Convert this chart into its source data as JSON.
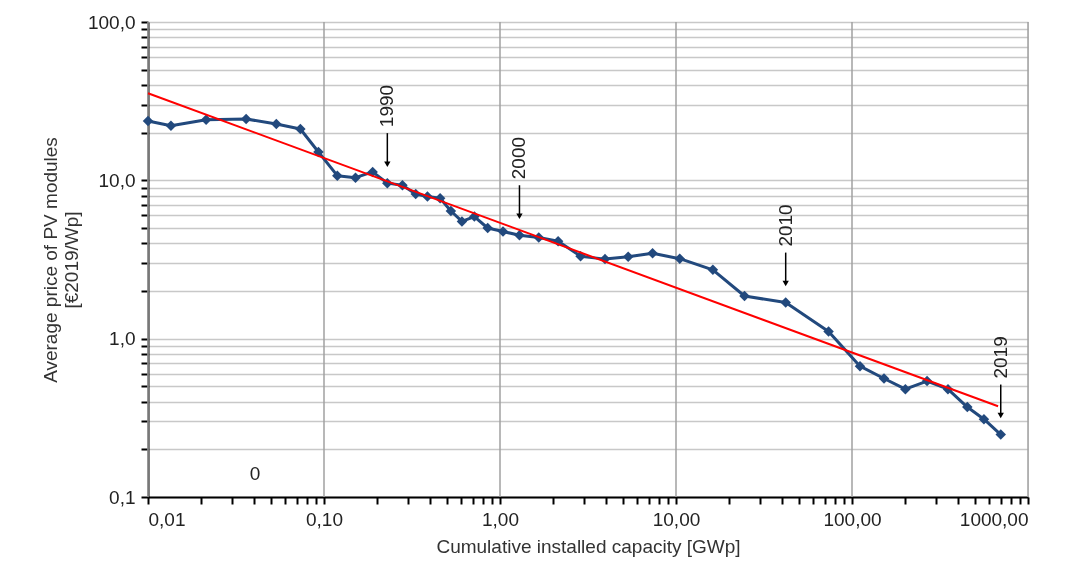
{
  "chart_data": {
    "type": "line",
    "xlabel": "Cumulative installed capacity [GWp]",
    "ylabel": "Average price of PV modules\n[€2019/Wp]",
    "log": "xy",
    "xlim": [
      0.01,
      1000
    ],
    "xticks": [
      {
        "value": 0.01,
        "label": "0,01"
      },
      {
        "value": 0.02,
        "label": null
      },
      {
        "value": 0.03,
        "label": null
      },
      {
        "value": 0.04,
        "label": null
      },
      {
        "value": 0.05,
        "label": null
      },
      {
        "value": 0.06,
        "label": null
      },
      {
        "value": 0.07,
        "label": null
      },
      {
        "value": 0.08,
        "label": null
      },
      {
        "value": 0.09,
        "label": null
      },
      {
        "value": 0.1,
        "label": "0,10"
      },
      {
        "value": 0.2,
        "label": null
      },
      {
        "value": 0.3,
        "label": null
      },
      {
        "value": 0.4,
        "label": null
      },
      {
        "value": 0.5,
        "label": null
      },
      {
        "value": 0.6,
        "label": null
      },
      {
        "value": 0.7,
        "label": null
      },
      {
        "value": 0.8,
        "label": null
      },
      {
        "value": 0.9,
        "label": null
      },
      {
        "value": 1,
        "label": "1,00"
      },
      {
        "value": 2,
        "label": null
      },
      {
        "value": 3,
        "label": null
      },
      {
        "value": 4,
        "label": null
      },
      {
        "value": 5,
        "label": null
      },
      {
        "value": 6,
        "label": null
      },
      {
        "value": 7,
        "label": null
      },
      {
        "value": 8,
        "label": null
      },
      {
        "value": 9,
        "label": null
      },
      {
        "value": 10,
        "label": "10,00"
      },
      {
        "value": 20,
        "label": null
      },
      {
        "value": 30,
        "label": null
      },
      {
        "value": 40,
        "label": null
      },
      {
        "value": 50,
        "label": null
      },
      {
        "value": 60,
        "label": null
      },
      {
        "value": 70,
        "label": null
      },
      {
        "value": 80,
        "label": null
      },
      {
        "value": 90,
        "label": null
      },
      {
        "value": 100,
        "label": "100,00"
      },
      {
        "value": 200,
        "label": null
      },
      {
        "value": 300,
        "label": null
      },
      {
        "value": 400,
        "label": null
      },
      {
        "value": 500,
        "label": null
      },
      {
        "value": 600,
        "label": null
      },
      {
        "value": 700,
        "label": null
      },
      {
        "value": 800,
        "label": null
      },
      {
        "value": 900,
        "label": null
      },
      {
        "value": 1000,
        "label": "1000,00"
      }
    ],
    "ylim": [
      0.1,
      100
    ],
    "yticks": [
      {
        "value": 0.1,
        "label": "0,1"
      },
      {
        "value": 0.2,
        "label": null
      },
      {
        "value": 0.3,
        "label": null
      },
      {
        "value": 0.4,
        "label": null
      },
      {
        "value": 0.5,
        "label": null
      },
      {
        "value": 0.6,
        "label": null
      },
      {
        "value": 0.7,
        "label": null
      },
      {
        "value": 0.8,
        "label": null
      },
      {
        "value": 0.9,
        "label": null
      },
      {
        "value": 1,
        "label": "1,0"
      },
      {
        "value": 2,
        "label": null
      },
      {
        "value": 3,
        "label": null
      },
      {
        "value": 4,
        "label": null
      },
      {
        "value": 5,
        "label": null
      },
      {
        "value": 6,
        "label": null
      },
      {
        "value": 7,
        "label": null
      },
      {
        "value": 8,
        "label": null
      },
      {
        "value": 9,
        "label": null
      },
      {
        "value": 10,
        "label": "10,0"
      },
      {
        "value": 20,
        "label": null
      },
      {
        "value": 30,
        "label": null
      },
      {
        "value": 40,
        "label": null
      },
      {
        "value": 50,
        "label": null
      },
      {
        "value": 60,
        "label": null
      },
      {
        "value": 70,
        "label": null
      },
      {
        "value": 80,
        "label": null
      },
      {
        "value": 90,
        "label": null
      },
      {
        "value": 100,
        "label": "100,0"
      }
    ],
    "grid": true,
    "series": [
      {
        "color": "#22497d",
        "marker": "diamond",
        "x": [
          0.01,
          0.0135,
          0.0214,
          0.0361,
          0.0536,
          0.0734,
          0.093,
          0.119,
          0.151,
          0.189,
          0.229,
          0.279,
          0.332,
          0.387,
          0.457,
          0.526,
          0.608,
          0.715,
          0.851,
          1.04,
          1.29,
          1.66,
          2.14,
          2.87,
          3.95,
          5.35,
          7.36,
          10.5,
          16.2,
          24.5,
          42,
          73.6,
          111,
          152,
          201,
          267,
          351,
          452,
          562,
          700
        ],
        "values": [
          23.7,
          22.1,
          24.1,
          24.4,
          22.7,
          21.1,
          15.1,
          10.7,
          10.4,
          11.3,
          9.6,
          9.3,
          8.2,
          7.9,
          7.7,
          6.4,
          5.5,
          5.9,
          5.0,
          4.75,
          4.5,
          4.36,
          4.13,
          3.32,
          3.18,
          3.29,
          3.46,
          3.2,
          2.72,
          1.86,
          1.69,
          1.11,
          0.67,
          0.56,
          0.48,
          0.54,
          0.48,
          0.37,
          0.31,
          0.248
        ]
      },
      {
        "color": "#ff0000",
        "marker": "none",
        "x": [
          0.01,
          676
        ],
        "values": [
          35.5,
          0.374
        ]
      }
    ],
    "annotations": [
      {
        "text": "1990",
        "x": 0.229,
        "y": 9.6
      },
      {
        "text": "2000",
        "x": 1.29,
        "y": 4.5
      },
      {
        "text": "2010",
        "x": 42,
        "y": 1.69
      },
      {
        "text": "2019",
        "x": 700,
        "y": 0.248
      },
      "0"
    ]
  }
}
